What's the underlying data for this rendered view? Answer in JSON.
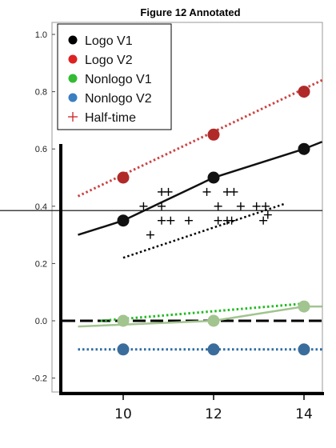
{
  "chart_data": {
    "type": "scatter",
    "title": "Figure 12 Annotated",
    "xlabel": "",
    "ylabel": "",
    "xlim": [
      9,
      14.5
    ],
    "ylim": [
      -0.25,
      1.05
    ],
    "y_ticks": [
      "1.0",
      "0.8",
      "0.6",
      "0.4",
      "0.2",
      "0.0",
      "-0.2"
    ],
    "y_tick_values": [
      1.0,
      0.8,
      0.6,
      0.4,
      0.2,
      0.0,
      -0.2
    ],
    "x_ticks": [
      "10",
      "12",
      "14"
    ],
    "x_tick_values": [
      10,
      12,
      14
    ],
    "legend_position": "top-left",
    "legend": [
      {
        "label": "Logo V1",
        "color": "#000000",
        "marker": "dot"
      },
      {
        "label": "Logo V2",
        "color": "#dd2222",
        "marker": "dot"
      },
      {
        "label": "Nonlogo V1",
        "color": "#33bb33",
        "marker": "dot"
      },
      {
        "label": "Nonlogo V2",
        "color": "#3a7fc0",
        "marker": "dot"
      },
      {
        "label": "Half-time",
        "color": "#cc2222",
        "marker": "plus"
      }
    ],
    "series": [
      {
        "name": "Logo V1",
        "color": "#111111",
        "point_color": "#111111",
        "x": [
          10,
          12,
          14
        ],
        "y": [
          0.35,
          0.5,
          0.6
        ],
        "fit_x": [
          9.0,
          14.4
        ],
        "fit_y": [
          0.3,
          0.625
        ],
        "fit_style": "solid"
      },
      {
        "name": "Logo V2",
        "color": "#cc4444",
        "point_color": "#b02a2a",
        "x": [
          10,
          12,
          14
        ],
        "y": [
          0.5,
          0.65,
          0.8
        ],
        "fit_x": [
          9.0,
          14.4
        ],
        "fit_y": [
          0.435,
          0.84
        ],
        "fit_style": "dotted"
      },
      {
        "name": "Nonlogo V1",
        "color": "#22bb22",
        "point_color": "#a2c48f",
        "x": [
          10,
          12,
          14
        ],
        "y": [
          0.0,
          0.0,
          0.05
        ],
        "fit_x": [
          9.5,
          14.0
        ],
        "fit_y": [
          0.0,
          0.06
        ],
        "fit_style": "dotted"
      },
      {
        "name": "Nonlogo V2",
        "color": "#2e6da4",
        "point_color": "#3a6d9c",
        "x": [
          10,
          12,
          14
        ],
        "y": [
          -0.1,
          -0.1,
          -0.1
        ],
        "fit_x": [
          9.0,
          14.4
        ],
        "fit_y": [
          -0.1,
          -0.1
        ],
        "fit_style": "dotted"
      }
    ],
    "nonlogo_v1_trend": {
      "x": [
        9.0,
        12.0,
        14.0,
        14.4
      ],
      "y": [
        -0.02,
        0.0,
        0.05,
        0.05
      ],
      "color": "#a2c48f"
    },
    "half_time": {
      "color": "#000000",
      "x": [
        10.45,
        10.85,
        11.0,
        10.85,
        10.85,
        11.05,
        10.6,
        11.45,
        11.85,
        12.3,
        12.45,
        12.1,
        12.1,
        12.3,
        12.4,
        12.95,
        13.15,
        13.1,
        13.2,
        12.6
      ],
      "y": [
        0.4,
        0.45,
        0.45,
        0.4,
        0.35,
        0.35,
        0.3,
        0.35,
        0.45,
        0.45,
        0.45,
        0.4,
        0.35,
        0.35,
        0.35,
        0.4,
        0.4,
        0.35,
        0.37,
        0.4
      ]
    },
    "half_time_trend": {
      "x": [
        10.0,
        13.6
      ],
      "y": [
        0.22,
        0.41
      ],
      "style": "dotted",
      "color": "#000000"
    },
    "reference_lines": [
      {
        "axis": "y",
        "value": 0.385,
        "style": "solid",
        "color": "#000000"
      },
      {
        "axis": "y",
        "value": 0.0,
        "style": "dashed",
        "color": "#000000"
      }
    ]
  }
}
